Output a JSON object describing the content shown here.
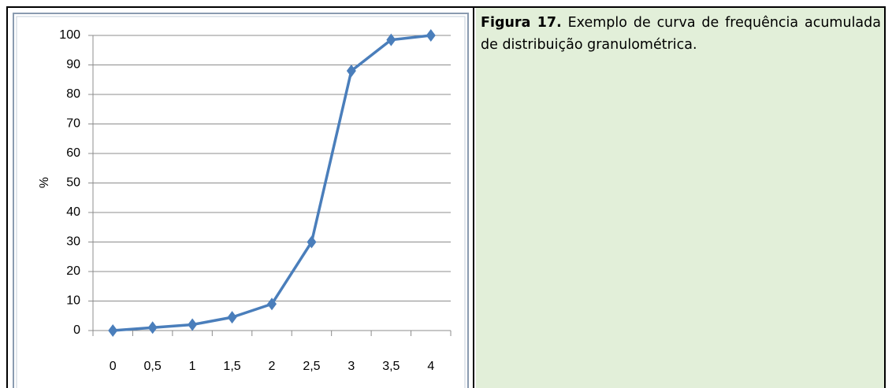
{
  "chart_data": {
    "type": "line",
    "ylabel": "%",
    "categories": [
      "0",
      "0,5",
      "1",
      "1,5",
      "2",
      "2,5",
      "3",
      "3,5",
      "4"
    ],
    "values": [
      0,
      1,
      2,
      4.5,
      9,
      30,
      88,
      98.5,
      100
    ],
    "color": "#4a7ebb",
    "ylim": [
      0,
      100
    ],
    "yticks": [
      0,
      10,
      20,
      30,
      40,
      50,
      60,
      70,
      80,
      90,
      100
    ],
    "grid": true
  },
  "caption": {
    "label": "Figura 17.",
    "text": " Exemplo de curva de frequência acumulada de distribuição granulométrica."
  }
}
